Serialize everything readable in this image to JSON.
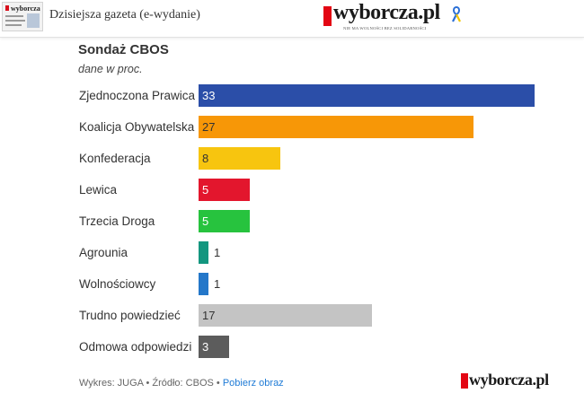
{
  "header": {
    "issue_title": "Dzisiejsza gazeta (e-wydanie)",
    "thumbnail_masthead": "wyborcza",
    "brand": "wyborcza.pl",
    "tagline": "NIE MA WOLNOŚCI BEZ SOLIDARNOŚCI"
  },
  "chart_data": {
    "type": "bar",
    "orientation": "horizontal",
    "title": "Sondaż CBOS",
    "subtitle": "dane w proc.",
    "categories": [
      "Zjednoczona Prawica",
      "Koalicja Obywatelska",
      "Konfederacja",
      "Lewica",
      "Trzecia Droga",
      "Agrounia",
      "Wolnościowcy",
      "Trudno powiedzieć",
      "Odmowa odpowiedzi"
    ],
    "values": [
      33,
      27,
      8,
      5,
      5,
      1,
      1,
      17,
      3
    ],
    "labels": [
      "33",
      "27",
      "8",
      "5",
      "5",
      "1",
      "1",
      "17",
      "3"
    ],
    "colors": [
      "#2b4ea8",
      "#f79707",
      "#f7c50f",
      "#e3162d",
      "#27c33e",
      "#13967f",
      "#2477c9",
      "#c4c4c4",
      "#5c5c5c"
    ],
    "label_colors": [
      "#ffffff",
      "#333333",
      "#333333",
      "#ffffff",
      "#ffffff",
      "#333333",
      "#333333",
      "#333333",
      "#ffffff"
    ],
    "xlim": [
      0,
      33
    ],
    "grid": false,
    "legend": "none"
  },
  "footer": {
    "credits": "Wykres: JUGA • Źródło: CBOS • ",
    "download_link": "Pobierz obraz",
    "brand": "wyborcza.pl"
  }
}
